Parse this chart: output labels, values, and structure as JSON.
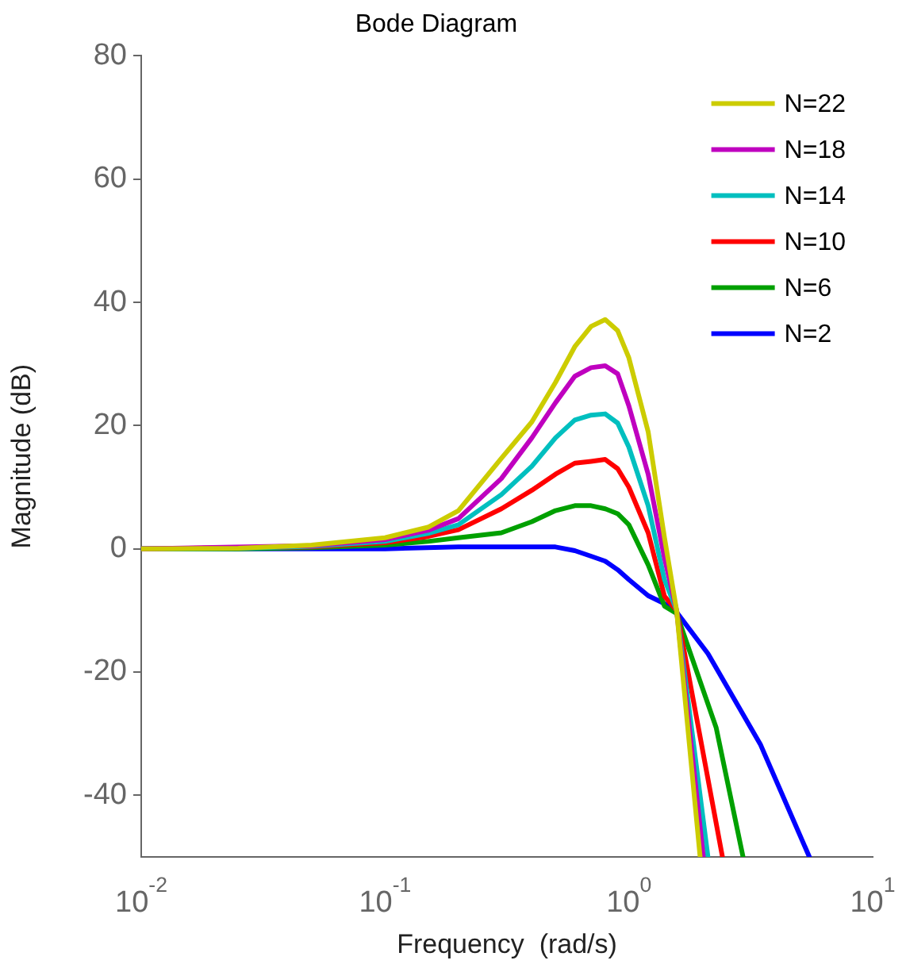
{
  "chart_data": {
    "type": "line",
    "title": "Bode Diagram",
    "xlabel": "Frequency  (rad/s)",
    "ylabel": "Magnitude (dB)",
    "log": "x",
    "grid": false,
    "legend": "top right",
    "marker": "none",
    "line_style": "solid",
    "xlim": [
      0.01,
      10
    ],
    "xticks": [
      {
        "value": 0.01,
        "label": "10$^{-2}$"
      },
      {
        "value": 0.1,
        "label": "10$^{-1}$"
      },
      {
        "value": 1,
        "label": "10$^{0}$"
      },
      {
        "value": 10,
        "label": "10$^{1}$"
      }
    ],
    "ylim": [
      -50,
      80
    ],
    "yticks": [
      -40,
      -20,
      0,
      20,
      40,
      60,
      80
    ],
    "series": [
      {
        "name": "N=22",
        "color": "#cccc00",
        "x": [
          0.01,
          0.025,
          0.05,
          0.1,
          0.15,
          0.2,
          0.3,
          0.4,
          0.5,
          0.6,
          0.7,
          0.8,
          0.9,
          1.0,
          1.2,
          1.4,
          1.57,
          1.96
        ],
        "values": [
          0,
          0.1,
          0.6,
          1.8,
          3.5,
          6.2,
          14.7,
          20.6,
          27,
          32.8,
          36.1,
          37.2,
          35.4,
          31,
          19,
          1.8,
          -10,
          -50
        ]
      },
      {
        "name": "N=18",
        "color": "#bf00bf",
        "x": [
          0.01,
          0.025,
          0.05,
          0.1,
          0.15,
          0.2,
          0.3,
          0.4,
          0.5,
          0.6,
          0.7,
          0.8,
          0.9,
          1.0,
          1.2,
          1.4,
          1.57,
          2.02
        ],
        "values": [
          0,
          null,
          0.5,
          1.5,
          3,
          4.9,
          11.4,
          18,
          23.7,
          28,
          29.4,
          29.7,
          28.4,
          23.2,
          12.1,
          -1.5,
          -10,
          -50
        ]
      },
      {
        "name": "N=14",
        "color": "#00bfbf",
        "x": [
          0.01,
          0.025,
          0.05,
          0.1,
          0.15,
          0.2,
          0.3,
          0.4,
          0.5,
          0.6,
          0.7,
          0.8,
          0.9,
          1.0,
          1.2,
          1.4,
          1.57,
          2.11
        ],
        "values": [
          0,
          0.1,
          0.4,
          1.2,
          2.5,
          3.9,
          8.8,
          13.4,
          18,
          20.9,
          21.7,
          21.9,
          20.4,
          16.5,
          7,
          -5,
          -10,
          -50
        ]
      },
      {
        "name": "N=10",
        "color": "#ff0000",
        "x": [
          0.01,
          0.025,
          0.05,
          0.1,
          0.15,
          0.2,
          0.3,
          0.4,
          0.5,
          0.6,
          0.7,
          0.8,
          0.9,
          1.0,
          1.2,
          1.4,
          1.57,
          2.42
        ],
        "values": [
          0,
          null,
          0.3,
          1,
          2,
          3.1,
          6.5,
          9.5,
          12.1,
          13.9,
          14.2,
          14.5,
          13,
          10,
          2.6,
          -7.7,
          -10,
          -50
        ]
      },
      {
        "name": "N=6",
        "color": "#00a000",
        "x": [
          0.01,
          0.025,
          0.05,
          0.1,
          0.15,
          0.2,
          0.3,
          0.4,
          0.5,
          0.6,
          0.7,
          0.8,
          0.9,
          1.0,
          1.2,
          1.4,
          1.57,
          2.28,
          2.94
        ],
        "values": [
          0,
          0,
          0.2,
          0.6,
          1.2,
          1.8,
          2.6,
          4.4,
          6.2,
          7,
          7,
          6.5,
          5.7,
          3.9,
          -2.6,
          -9.3,
          -10.5,
          -29,
          -50
        ]
      },
      {
        "name": "N=2",
        "color": "#0000ff",
        "x": [
          0.01,
          0.1,
          0.2,
          0.5,
          0.6,
          0.7,
          0.8,
          0.9,
          1.0,
          1.2,
          1.4,
          1.57,
          2.11,
          3.46,
          5.5
        ],
        "values": [
          0,
          0,
          0.3,
          0.3,
          -0.3,
          -1.2,
          -2,
          -3.4,
          -5,
          -7.6,
          -8.9,
          -10.3,
          -17,
          -31.7,
          -50
        ]
      }
    ]
  }
}
